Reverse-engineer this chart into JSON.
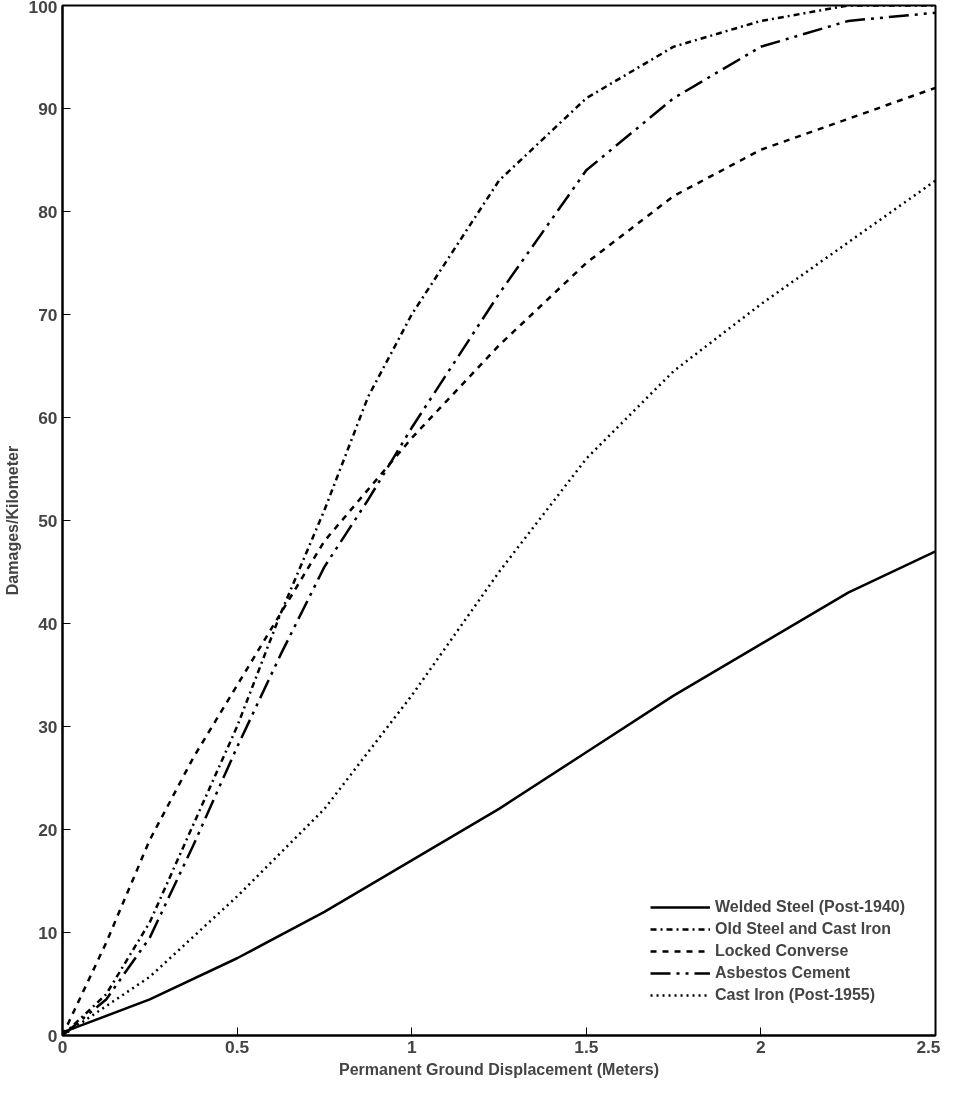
{
  "chart_data": {
    "type": "line",
    "xlabel": "Permanent Ground Displacement (Meters)",
    "ylabel": "Damages/Kilometer",
    "xlim": [
      0,
      2.5
    ],
    "ylim": [
      0,
      100
    ],
    "xticks": [
      0,
      0.5,
      1,
      1.5,
      2,
      2.5
    ],
    "yticks": [
      0,
      10,
      20,
      30,
      40,
      50,
      60,
      70,
      80,
      90,
      100
    ],
    "grid": false,
    "legend": "bottom right",
    "marker": "none",
    "series": [
      {
        "name": "Welded Steel (Post-1940)",
        "color": "#000000",
        "line_style": "solid",
        "x": [
          0,
          0.25,
          0.5,
          0.75,
          1,
          1.25,
          1.5,
          1.75,
          2,
          2.25,
          2.5
        ],
        "values": [
          0.3,
          3.5,
          7.5,
          12,
          17,
          22,
          27.5,
          33,
          38,
          43,
          47
        ]
      },
      {
        "name": "Old Steel and Cast Iron",
        "color": "#000000",
        "line_style": "dashdot",
        "x": [
          0,
          0.125,
          0.25,
          0.375,
          0.5,
          0.625,
          0.75,
          0.875,
          1,
          1.25,
          1.5,
          1.75,
          2,
          2.25,
          2.5
        ],
        "values": [
          0,
          4,
          11,
          20.5,
          30,
          41,
          51,
          62,
          70,
          83,
          91,
          96,
          98.5,
          100,
          100
        ]
      },
      {
        "name": "Locked Converse",
        "color": "#000000",
        "line_style": "dashed",
        "x": [
          0,
          0.125,
          0.25,
          0.375,
          0.5,
          0.625,
          0.75,
          1,
          1.25,
          1.5,
          1.75,
          2,
          2.25,
          2.5
        ],
        "values": [
          0,
          9,
          19,
          27,
          34,
          41,
          48,
          58,
          67,
          75,
          81.5,
          86,
          89,
          92
        ]
      },
      {
        "name": "Asbestos Cement",
        "color": "#000000",
        "line_style": "dashdotdot",
        "x": [
          0,
          0.125,
          0.25,
          0.375,
          0.5,
          0.625,
          0.75,
          0.875,
          1,
          1.25,
          1.5,
          1.75,
          2,
          2.25,
          2.5
        ],
        "values": [
          0,
          3.5,
          9.5,
          18.5,
          28,
          37,
          45.5,
          52,
          59,
          72,
          84,
          91,
          96,
          98.5,
          99.3
        ]
      },
      {
        "name": "Cast Iron (Post-1955)",
        "color": "#000000",
        "line_style": "dotted",
        "x": [
          0,
          0.25,
          0.5,
          0.75,
          1,
          1.25,
          1.5,
          1.75,
          2,
          2.25,
          2.5
        ],
        "values": [
          0,
          5.7,
          13.5,
          22,
          33,
          45,
          56,
          64.5,
          71,
          77,
          83
        ]
      }
    ]
  }
}
